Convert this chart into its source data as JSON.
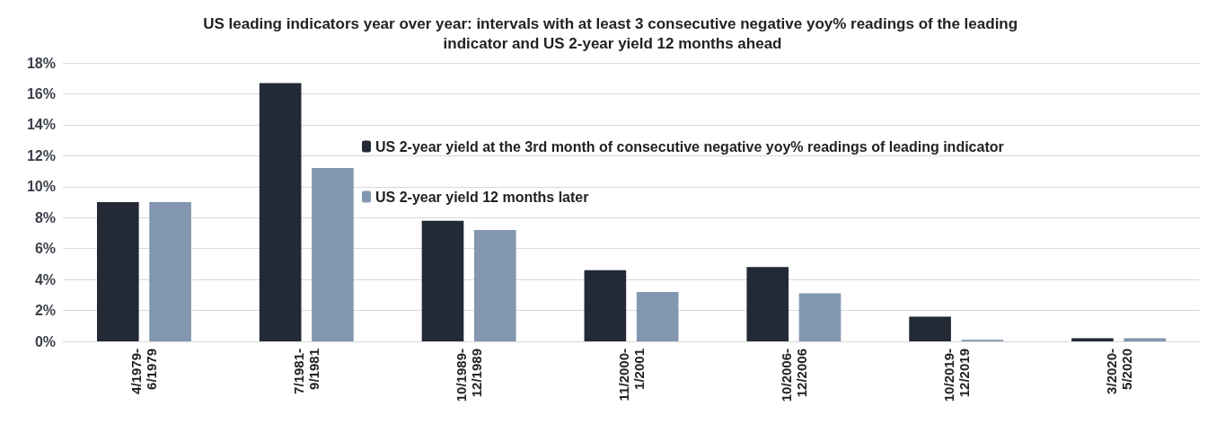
{
  "chart_data": {
    "type": "bar",
    "title": "US leading indicators year over year: intervals with at least 3 consecutive negative yoy% readings of the leading indicator and US 2-year yield 12 months ahead",
    "categories": [
      "4/1979-\n6/1979",
      "7/1981-\n9/1981",
      "10/1989-\n12/1989",
      "11/2000-\n1/2001",
      "10/2006-\n12/2006",
      "10/2019-\n12/2019",
      "3/2020-\n5/2020"
    ],
    "series": [
      {
        "name": "US 2-year yield at the 3rd month of consecutive negative yoy% readings of leading indicator",
        "color": "#232a36",
        "values": [
          9.0,
          16.7,
          7.8,
          4.6,
          4.8,
          1.6,
          0.2
        ]
      },
      {
        "name": "US 2-year yield 12 months later",
        "color": "#8397b0",
        "values": [
          9.0,
          11.2,
          7.2,
          3.2,
          3.1,
          0.1,
          0.2
        ]
      }
    ],
    "ylim": [
      0,
      18
    ],
    "yticks": [
      {
        "value": 0,
        "label": "0%"
      },
      {
        "value": 2,
        "label": "2%"
      },
      {
        "value": 4,
        "label": "4%"
      },
      {
        "value": 6,
        "label": "6%"
      },
      {
        "value": 8,
        "label": "8%"
      },
      {
        "value": 10,
        "label": "10%"
      },
      {
        "value": 12,
        "label": "12%"
      },
      {
        "value": 14,
        "label": "14%"
      },
      {
        "value": 16,
        "label": "16%"
      },
      {
        "value": 18,
        "label": "18%"
      }
    ],
    "grid": "y",
    "legend": "top right"
  }
}
